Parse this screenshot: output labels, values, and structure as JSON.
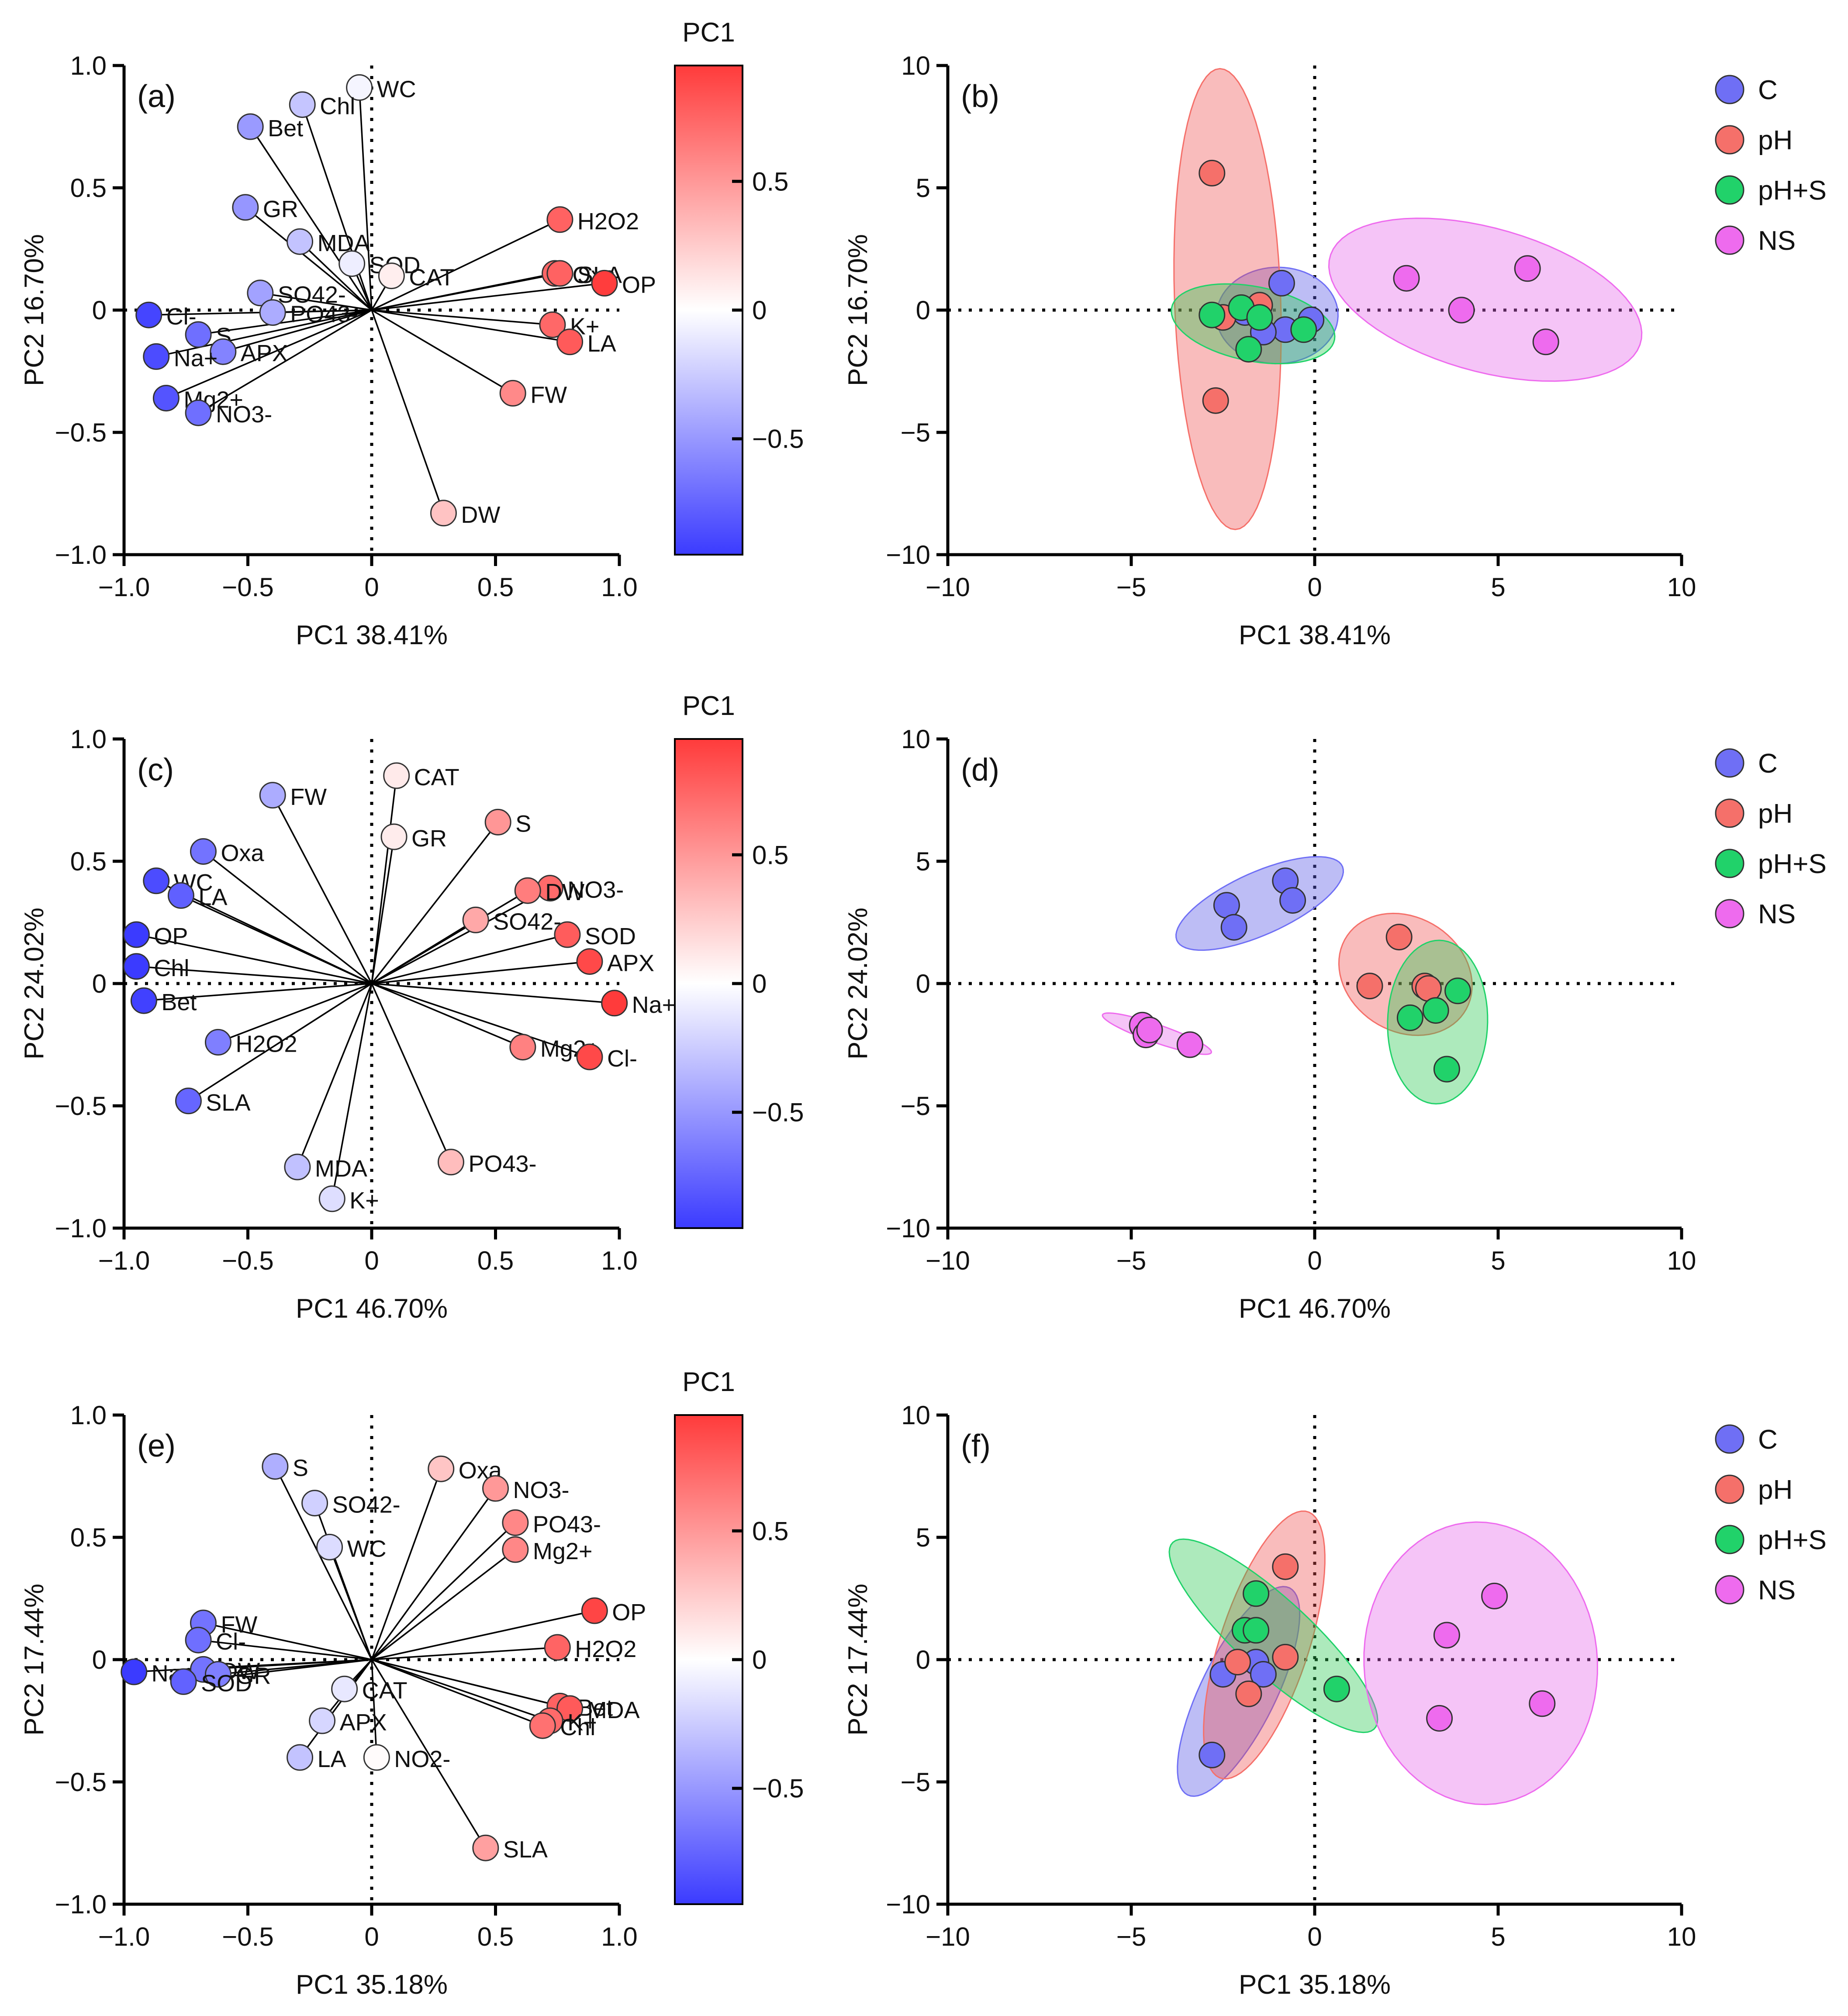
{
  "chart_data": [
    {
      "panel": "(a)",
      "type": "scatter",
      "subtype": "loading-biplot",
      "xlabel": "PC1 38.41%",
      "ylabel": "PC2 16.70%",
      "xlim": [
        -1.0,
        1.0
      ],
      "ylim": [
        -1.0,
        1.0
      ],
      "xticks": [
        -1.0,
        -0.5,
        0,
        0.5,
        1.0
      ],
      "yticks": [
        -1.0,
        -0.5,
        0,
        0.5,
        1.0
      ],
      "xtick_labels": [
        "−1.0",
        "−0.5",
        "0",
        "0.5",
        "1.0"
      ],
      "ytick_labels": [
        "−1.0",
        "−0.5",
        "0",
        "0.5",
        "1.0"
      ],
      "colorbar": {
        "title": "PC1",
        "ticks": [
          0.5,
          0,
          -0.5
        ],
        "tick_labels": [
          "0.5",
          "0",
          "−0.5"
        ],
        "range": [
          -0.95,
          0.95
        ]
      },
      "points": [
        {
          "label": "WC",
          "x": -0.05,
          "y": 0.91
        },
        {
          "label": "Chl",
          "x": -0.28,
          "y": 0.84
        },
        {
          "label": "Bet",
          "x": -0.49,
          "y": 0.75
        },
        {
          "label": "GR",
          "x": -0.51,
          "y": 0.42
        },
        {
          "label": "MDA",
          "x": -0.29,
          "y": 0.28
        },
        {
          "label": "SOD",
          "x": -0.08,
          "y": 0.19
        },
        {
          "label": "CAT",
          "x": 0.08,
          "y": 0.14
        },
        {
          "label": "SO42-",
          "x": -0.45,
          "y": 0.07
        },
        {
          "label": "PO43-",
          "x": -0.4,
          "y": -0.01
        },
        {
          "label": "Cl-",
          "x": -0.9,
          "y": -0.02
        },
        {
          "label": "S",
          "x": -0.7,
          "y": -0.1
        },
        {
          "label": "APX",
          "x": -0.6,
          "y": -0.17
        },
        {
          "label": "Na+",
          "x": -0.87,
          "y": -0.19
        },
        {
          "label": "Mg2+",
          "x": -0.83,
          "y": -0.36
        },
        {
          "label": "NO3-",
          "x": -0.7,
          "y": -0.42
        },
        {
          "label": "H2O2",
          "x": 0.76,
          "y": 0.37
        },
        {
          "label": "Oxa",
          "x": 0.74,
          "y": 0.15
        },
        {
          "label": "SLA",
          "x": 0.76,
          "y": 0.15
        },
        {
          "label": "OP",
          "x": 0.94,
          "y": 0.11
        },
        {
          "label": "K+",
          "x": 0.73,
          "y": -0.06
        },
        {
          "label": "LA",
          "x": 0.8,
          "y": -0.13
        },
        {
          "label": "FW",
          "x": 0.57,
          "y": -0.34
        },
        {
          "label": "DW",
          "x": 0.29,
          "y": -0.83
        }
      ]
    },
    {
      "panel": "(b)",
      "type": "scatter",
      "subtype": "score-plot",
      "xlabel": "PC1 38.41%",
      "ylabel": "PC2 16.70%",
      "xlim": [
        -10,
        10
      ],
      "ylim": [
        -10,
        10
      ],
      "xticks": [
        -10,
        -5,
        0,
        5,
        10
      ],
      "yticks": [
        -10,
        -5,
        0,
        5,
        10
      ],
      "xtick_labels": [
        "−10",
        "−5",
        "0",
        "5",
        "10"
      ],
      "ytick_labels": [
        "−10",
        "−5",
        "0",
        "5",
        "10"
      ],
      "legend": [
        "C",
        "pH",
        "pH+S",
        "NS"
      ],
      "series": [
        {
          "name": "C",
          "points": [
            [
              -0.9,
              1.1
            ],
            [
              -0.1,
              -0.4
            ],
            [
              -0.8,
              -0.8
            ],
            [
              -1.4,
              -0.9
            ],
            [
              -1.9,
              -0.1
            ]
          ]
        },
        {
          "name": "pH",
          "points": [
            [
              -2.8,
              5.6
            ],
            [
              -1.5,
              0.2
            ],
            [
              -2.5,
              -0.3
            ],
            [
              -2.7,
              -3.7
            ]
          ]
        },
        {
          "name": "pH+S",
          "points": [
            [
              -2.8,
              -0.2
            ],
            [
              -2.0,
              0.1
            ],
            [
              -0.3,
              -0.8
            ],
            [
              -1.8,
              -1.6
            ],
            [
              -1.5,
              -0.3
            ]
          ]
        },
        {
          "name": "NS",
          "points": [
            [
              2.5,
              1.3
            ],
            [
              4.0,
              0.0
            ],
            [
              5.8,
              1.7
            ],
            [
              6.3,
              -1.3
            ]
          ]
        }
      ]
    },
    {
      "panel": "(c)",
      "type": "scatter",
      "subtype": "loading-biplot",
      "xlabel": "PC1 46.70%",
      "ylabel": "PC2 24.02%",
      "xlim": [
        -1.0,
        1.0
      ],
      "ylim": [
        -1.0,
        1.0
      ],
      "xticks": [
        -1.0,
        -0.5,
        0,
        0.5,
        1.0
      ],
      "yticks": [
        -1.0,
        -0.5,
        0,
        0.5,
        1.0
      ],
      "xtick_labels": [
        "−1.0",
        "−0.5",
        "0",
        "0.5",
        "1.0"
      ],
      "ytick_labels": [
        "−1.0",
        "−0.5",
        "0",
        "0.5",
        "1.0"
      ],
      "colorbar": {
        "title": "PC1",
        "ticks": [
          0.5,
          0,
          -0.5
        ],
        "tick_labels": [
          "0.5",
          "0",
          "−0.5"
        ],
        "range": [
          -0.95,
          0.95
        ]
      },
      "points": [
        {
          "label": "CAT",
          "x": 0.1,
          "y": 0.85
        },
        {
          "label": "GR",
          "x": 0.09,
          "y": 0.6
        },
        {
          "label": "FW",
          "x": -0.4,
          "y": 0.77
        },
        {
          "label": "S",
          "x": 0.51,
          "y": 0.66
        },
        {
          "label": "Oxa",
          "x": -0.68,
          "y": 0.54
        },
        {
          "label": "WC",
          "x": -0.87,
          "y": 0.42
        },
        {
          "label": "LA",
          "x": -0.77,
          "y": 0.36
        },
        {
          "label": "NO3-",
          "x": 0.72,
          "y": 0.39
        },
        {
          "label": "DW",
          "x": 0.63,
          "y": 0.38
        },
        {
          "label": "SO42-",
          "x": 0.42,
          "y": 0.26
        },
        {
          "label": "SOD",
          "x": 0.79,
          "y": 0.2
        },
        {
          "label": "APX",
          "x": 0.88,
          "y": 0.09
        },
        {
          "label": "OP",
          "x": -0.95,
          "y": 0.2
        },
        {
          "label": "Chl",
          "x": -0.95,
          "y": 0.07
        },
        {
          "label": "Bet",
          "x": -0.92,
          "y": -0.07
        },
        {
          "label": "Na+",
          "x": 0.98,
          "y": -0.08
        },
        {
          "label": "H2O2",
          "x": -0.62,
          "y": -0.24
        },
        {
          "label": "Mg2+",
          "x": 0.61,
          "y": -0.26
        },
        {
          "label": "Cl-",
          "x": 0.88,
          "y": -0.3
        },
        {
          "label": "SLA",
          "x": -0.74,
          "y": -0.48
        },
        {
          "label": "PO43-",
          "x": 0.32,
          "y": -0.73
        },
        {
          "label": "MDA",
          "x": -0.3,
          "y": -0.75
        },
        {
          "label": "K+",
          "x": -0.16,
          "y": -0.88
        }
      ]
    },
    {
      "panel": "(d)",
      "type": "scatter",
      "subtype": "score-plot",
      "xlabel": "PC1 46.70%",
      "ylabel": "PC2 24.02%",
      "xlim": [
        -10,
        10
      ],
      "ylim": [
        -10,
        10
      ],
      "xticks": [
        -10,
        -5,
        0,
        5,
        10
      ],
      "yticks": [
        -10,
        -5,
        0,
        5,
        10
      ],
      "xtick_labels": [
        "−10",
        "−5",
        "0",
        "5",
        "10"
      ],
      "ytick_labels": [
        "−10",
        "−5",
        "0",
        "5",
        "10"
      ],
      "legend": [
        "C",
        "pH",
        "pH+S",
        "NS"
      ],
      "series": [
        {
          "name": "C",
          "points": [
            [
              -2.4,
              3.2
            ],
            [
              -0.8,
              4.2
            ],
            [
              -2.2,
              2.3
            ],
            [
              -0.6,
              3.4
            ]
          ]
        },
        {
          "name": "pH",
          "points": [
            [
              2.3,
              1.9
            ],
            [
              1.5,
              -0.1
            ],
            [
              3.0,
              -0.1
            ],
            [
              3.1,
              -0.2
            ]
          ]
        },
        {
          "name": "pH+S",
          "points": [
            [
              3.9,
              -0.3
            ],
            [
              3.3,
              -1.1
            ],
            [
              2.6,
              -1.4
            ],
            [
              3.6,
              -3.5
            ]
          ]
        },
        {
          "name": "NS",
          "points": [
            [
              -4.7,
              -1.7
            ],
            [
              -4.6,
              -2.1
            ],
            [
              -4.5,
              -1.9
            ],
            [
              -3.4,
              -2.5
            ]
          ]
        }
      ]
    },
    {
      "panel": "(e)",
      "type": "scatter",
      "subtype": "loading-biplot",
      "xlabel": "PC1 35.18%",
      "ylabel": "PC2 17.44%",
      "xlim": [
        -1.0,
        1.0
      ],
      "ylim": [
        -1.0,
        1.0
      ],
      "xticks": [
        -1.0,
        -0.5,
        0,
        0.5,
        1.0
      ],
      "yticks": [
        -1.0,
        -0.5,
        0,
        0.5,
        1.0
      ],
      "xtick_labels": [
        "−1.0",
        "−0.5",
        "0",
        "0.5",
        "1.0"
      ],
      "ytick_labels": [
        "−1.0",
        "−0.5",
        "0",
        "0.5",
        "1.0"
      ],
      "colorbar": {
        "title": "PC1",
        "ticks": [
          0.5,
          0,
          -0.5
        ],
        "tick_labels": [
          "0.5",
          "0",
          "−0.5"
        ],
        "range": [
          -0.95,
          0.95
        ]
      },
      "points": [
        {
          "label": "S",
          "x": -0.39,
          "y": 0.79
        },
        {
          "label": "SO42-",
          "x": -0.23,
          "y": 0.64
        },
        {
          "label": "WC",
          "x": -0.17,
          "y": 0.46
        },
        {
          "label": "Oxa",
          "x": 0.28,
          "y": 0.78
        },
        {
          "label": "NO3-",
          "x": 0.5,
          "y": 0.7
        },
        {
          "label": "PO43-",
          "x": 0.58,
          "y": 0.56
        },
        {
          "label": "Mg2+",
          "x": 0.58,
          "y": 0.45
        },
        {
          "label": "OP",
          "x": 0.9,
          "y": 0.2
        },
        {
          "label": "H2O2",
          "x": 0.75,
          "y": 0.05
        },
        {
          "label": "FW",
          "x": -0.68,
          "y": 0.15
        },
        {
          "label": "Cl-",
          "x": -0.7,
          "y": 0.08
        },
        {
          "label": "Na+",
          "x": -0.96,
          "y": -0.05
        },
        {
          "label": "DW",
          "x": -0.68,
          "y": -0.04
        },
        {
          "label": "GR",
          "x": -0.62,
          "y": -0.06
        },
        {
          "label": "SOD",
          "x": -0.76,
          "y": -0.09
        },
        {
          "label": "CAT",
          "x": -0.11,
          "y": -0.12
        },
        {
          "label": "APX",
          "x": -0.2,
          "y": -0.25
        },
        {
          "label": "LA",
          "x": -0.29,
          "y": -0.4
        },
        {
          "label": "NO2-",
          "x": 0.02,
          "y": -0.4
        },
        {
          "label": "Bet",
          "x": 0.76,
          "y": -0.19
        },
        {
          "label": "MDA",
          "x": 0.8,
          "y": -0.2
        },
        {
          "label": "K+",
          "x": 0.72,
          "y": -0.25
        },
        {
          "label": "Chl",
          "x": 0.69,
          "y": -0.27
        },
        {
          "label": "SLA",
          "x": 0.46,
          "y": -0.77
        }
      ]
    },
    {
      "panel": "(f)",
      "type": "scatter",
      "subtype": "score-plot",
      "xlabel": "PC1 35.18%",
      "ylabel": "PC2 17.44%",
      "xlim": [
        -10,
        10
      ],
      "ylim": [
        -10,
        10
      ],
      "xticks": [
        -10,
        -5,
        0,
        5,
        10
      ],
      "yticks": [
        -10,
        -5,
        0,
        5,
        10
      ],
      "xtick_labels": [
        "−10",
        "−5",
        "0",
        "5",
        "10"
      ],
      "ytick_labels": [
        "−10",
        "−5",
        "0",
        "5",
        "10"
      ],
      "legend": [
        "C",
        "pH",
        "pH+S",
        "NS"
      ],
      "series": [
        {
          "name": "C",
          "points": [
            [
              -2.5,
              -0.6
            ],
            [
              -1.6,
              -0.1
            ],
            [
              -1.4,
              -0.6
            ],
            [
              -2.8,
              -3.9
            ]
          ]
        },
        {
          "name": "pH",
          "points": [
            [
              -0.8,
              3.8
            ],
            [
              -0.8,
              0.1
            ],
            [
              -2.1,
              -0.1
            ],
            [
              -1.8,
              -1.4
            ]
          ]
        },
        {
          "name": "pH+S",
          "points": [
            [
              -1.6,
              2.7
            ],
            [
              -1.9,
              1.2
            ],
            [
              -1.6,
              1.2
            ],
            [
              0.6,
              -1.2
            ]
          ]
        },
        {
          "name": "NS",
          "points": [
            [
              4.9,
              2.6
            ],
            [
              3.6,
              1.0
            ],
            [
              6.2,
              -1.8
            ],
            [
              3.4,
              -2.4
            ]
          ]
        }
      ]
    }
  ]
}
